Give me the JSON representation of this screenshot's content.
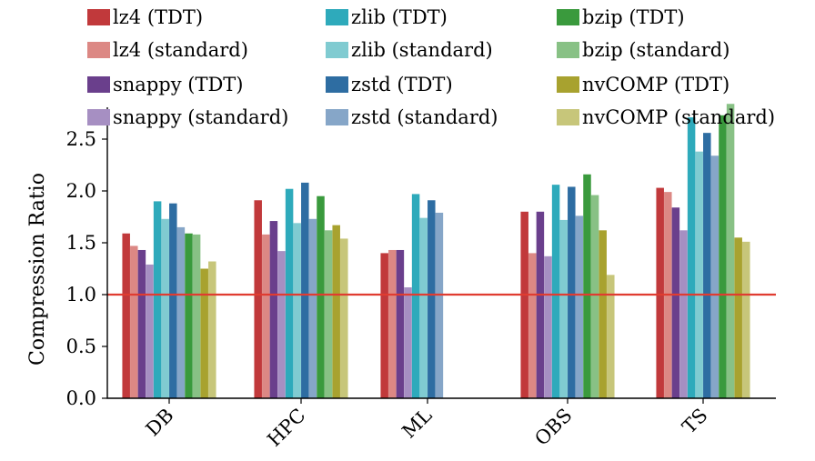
{
  "chart_data": {
    "type": "bar",
    "title": "",
    "xlabel": "",
    "ylabel": "Compression Ratio",
    "ylim": [
      0,
      2.85
    ],
    "yticks": [
      0.0,
      0.5,
      1.0,
      1.5,
      2.0,
      2.5
    ],
    "ytick_labels": [
      "0.0",
      "0.5",
      "1.0",
      "1.5",
      "2.0",
      "2.5"
    ],
    "reference_line": {
      "y": 1.0,
      "color": "#e03c31"
    },
    "categories": [
      "DB",
      "HPC",
      "ML",
      "OBS",
      "TS"
    ],
    "legend_position": "top",
    "series": [
      {
        "name": "lz4 (TDT)",
        "color": "#c1393b",
        "values": [
          1.59,
          1.91,
          1.4,
          1.8,
          2.03
        ]
      },
      {
        "name": "lz4 (standard)",
        "color": "#dc8884",
        "values": [
          1.47,
          1.58,
          1.43,
          1.4,
          1.99
        ]
      },
      {
        "name": "snappy (TDT)",
        "color": "#6a3f8c",
        "values": [
          1.43,
          1.71,
          1.43,
          1.8,
          1.84
        ]
      },
      {
        "name": "snappy (standard)",
        "color": "#a68fc2",
        "values": [
          1.29,
          1.42,
          1.07,
          1.37,
          1.62
        ]
      },
      {
        "name": "zlib (TDT)",
        "color": "#2eaabb",
        "values": [
          1.9,
          2.02,
          1.97,
          2.06,
          2.71
        ]
      },
      {
        "name": "zlib (standard)",
        "color": "#80cbd1",
        "values": [
          1.73,
          1.69,
          1.74,
          1.72,
          2.38
        ]
      },
      {
        "name": "zstd (TDT)",
        "color": "#2e6da2",
        "values": [
          1.88,
          2.08,
          1.91,
          2.04,
          2.56
        ]
      },
      {
        "name": "zstd (standard)",
        "color": "#86a6c8",
        "values": [
          1.65,
          1.73,
          1.79,
          1.76,
          2.34
        ]
      },
      {
        "name": "bzip (TDT)",
        "color": "#3a9a3d",
        "values": [
          1.59,
          1.95,
          null,
          2.16,
          2.73
        ]
      },
      {
        "name": "bzip (standard)",
        "color": "#88c185",
        "values": [
          1.58,
          1.62,
          null,
          1.96,
          2.84
        ]
      },
      {
        "name": "nvCOMP (TDT)",
        "color": "#a8a22f",
        "values": [
          1.25,
          1.67,
          null,
          1.62,
          1.55
        ]
      },
      {
        "name": "nvCOMP (standard)",
        "color": "#c7c67a",
        "values": [
          1.32,
          1.54,
          null,
          1.19,
          1.51
        ]
      }
    ]
  }
}
